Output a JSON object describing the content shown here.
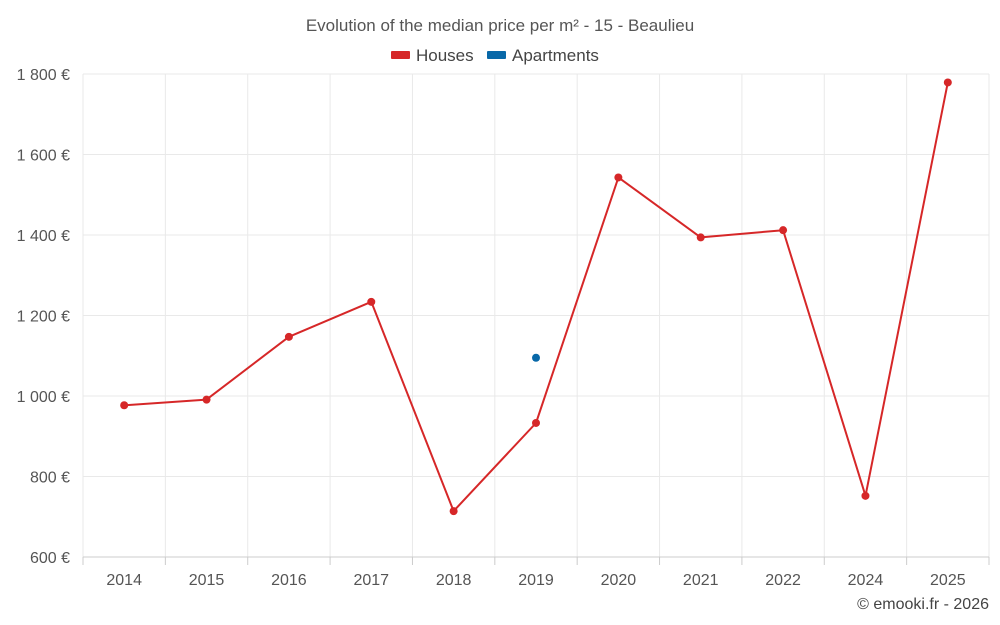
{
  "chart_data": {
    "type": "line",
    "title": "Evolution of the median price per m² - 15 - Beaulieu",
    "categories": [
      "2014",
      "2015",
      "2016",
      "2017",
      "2018",
      "2019",
      "2020",
      "2021",
      "2022",
      "2024",
      "2025"
    ],
    "series": [
      {
        "name": "Houses",
        "color": "#d62728",
        "values": [
          977,
          991,
          1147,
          1234,
          714,
          933,
          1543,
          1394,
          1412,
          752,
          1779
        ]
      },
      {
        "name": "Apartments",
        "color": "#0868a8",
        "values": [
          null,
          null,
          null,
          null,
          null,
          1095,
          null,
          null,
          null,
          null,
          null
        ]
      }
    ],
    "ylim": [
      600,
      1800
    ],
    "yticks": [
      600,
      800,
      1000,
      1200,
      1400,
      1600,
      1800
    ],
    "ytick_labels": [
      "600 €",
      "800 €",
      "1 000 €",
      "1 200 €",
      "1 400 €",
      "1 600 €",
      "1 800 €"
    ],
    "xlabel": "",
    "ylabel": "",
    "grid": true,
    "legend": "top-center"
  },
  "credit": "© emooki.fr - 2026"
}
